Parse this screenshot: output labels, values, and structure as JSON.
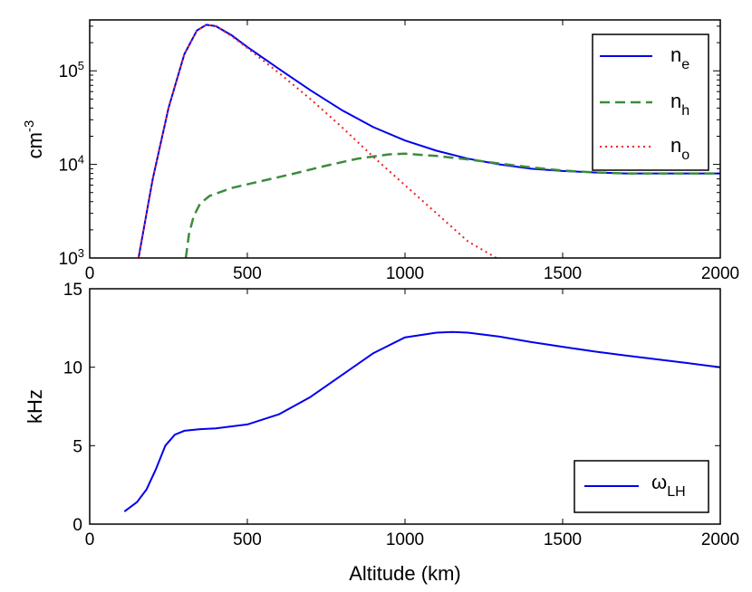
{
  "chart_data": [
    {
      "type": "line",
      "yscale": "log",
      "xlim": [
        0,
        2000
      ],
      "ylim": [
        1000,
        350000
      ],
      "xticks": [
        0,
        500,
        1000,
        1500,
        2000
      ],
      "xtick_labels": [
        "0",
        "500",
        "1000",
        "1500",
        "2000"
      ],
      "ytick_labels": [
        {
          "value": 1000,
          "base": "10",
          "exp": "3"
        },
        {
          "value": 10000,
          "base": "10",
          "exp": "4"
        },
        {
          "value": 100000,
          "base": "10",
          "exp": "5"
        }
      ],
      "ylabel": {
        "base": "cm",
        "exp": "-3"
      },
      "xlabel": "",
      "grid": false,
      "legend_position": "top-right",
      "series": [
        {
          "name": "n_e",
          "legend_base": "n",
          "legend_sub": "e",
          "color": "#0000ee",
          "style": "solid",
          "x": [
            155,
            200,
            250,
            300,
            340,
            370,
            400,
            450,
            500,
            600,
            700,
            800,
            900,
            1000,
            1100,
            1200,
            1300,
            1400,
            1500,
            1600,
            1700,
            1800,
            1900,
            2000
          ],
          "values": [
            1000,
            7000,
            40000,
            150000,
            270000,
            310000,
            300000,
            240000,
            180000,
            105000,
            62000,
            38000,
            25000,
            18000,
            14000,
            11500,
            10000,
            9000,
            8500,
            8200,
            8000,
            8000,
            8000,
            8000
          ]
        },
        {
          "name": "n_h",
          "legend_base": "n",
          "legend_sub": "h",
          "color": "#3c8c3c",
          "style": "dashed",
          "x": [
            305,
            315,
            330,
            350,
            380,
            450,
            550,
            650,
            750,
            850,
            950,
            1000,
            1100,
            1200,
            1300,
            1400,
            1500,
            1600,
            1700,
            1800,
            1900,
            2000
          ],
          "values": [
            1000,
            1800,
            2800,
            3800,
            4600,
            5600,
            6700,
            8000,
            9700,
            11500,
            12800,
            13000,
            12300,
            11300,
            10200,
            9300,
            8600,
            8200,
            8000,
            8000,
            8000,
            8000
          ]
        },
        {
          "name": "n_o",
          "legend_base": "n",
          "legend_sub": "o",
          "color": "#ee2222",
          "style": "dotted",
          "x": [
            155,
            200,
            250,
            300,
            340,
            370,
            400,
            450,
            500,
            600,
            700,
            800,
            900,
            1000,
            1100,
            1200,
            1290
          ],
          "values": [
            1000,
            7000,
            40000,
            150000,
            270000,
            310000,
            300000,
            235000,
            175000,
            95000,
            50000,
            25000,
            12000,
            6000,
            3000,
            1500,
            1000
          ]
        }
      ]
    },
    {
      "type": "line",
      "xlim": [
        0,
        2000
      ],
      "ylim": [
        0,
        15
      ],
      "xticks": [
        0,
        500,
        1000,
        1500,
        2000
      ],
      "xtick_labels": [
        "0",
        "500",
        "1000",
        "1500",
        "2000"
      ],
      "yticks": [
        0,
        5,
        10,
        15
      ],
      "ytick_labels": [
        "0",
        "5",
        "10",
        "15"
      ],
      "xlabel": "Altitude (km)",
      "ylabel": "kHz",
      "grid": false,
      "legend_position": "bottom-right",
      "series": [
        {
          "name": "omega_LH",
          "legend_base": "ω",
          "legend_sub": "LH",
          "color": "#0000ee",
          "style": "solid",
          "x": [
            110,
            150,
            180,
            210,
            240,
            270,
            300,
            350,
            400,
            500,
            600,
            700,
            800,
            900,
            1000,
            1100,
            1150,
            1200,
            1300,
            1400,
            1500,
            1600,
            1700,
            1800,
            1900,
            2000
          ],
          "values": [
            0.8,
            1.4,
            2.2,
            3.5,
            5.0,
            5.7,
            5.95,
            6.05,
            6.1,
            6.35,
            7.0,
            8.1,
            9.5,
            10.9,
            11.9,
            12.2,
            12.25,
            12.2,
            11.95,
            11.6,
            11.3,
            11.0,
            10.75,
            10.5,
            10.25,
            10.0
          ]
        }
      ]
    }
  ]
}
